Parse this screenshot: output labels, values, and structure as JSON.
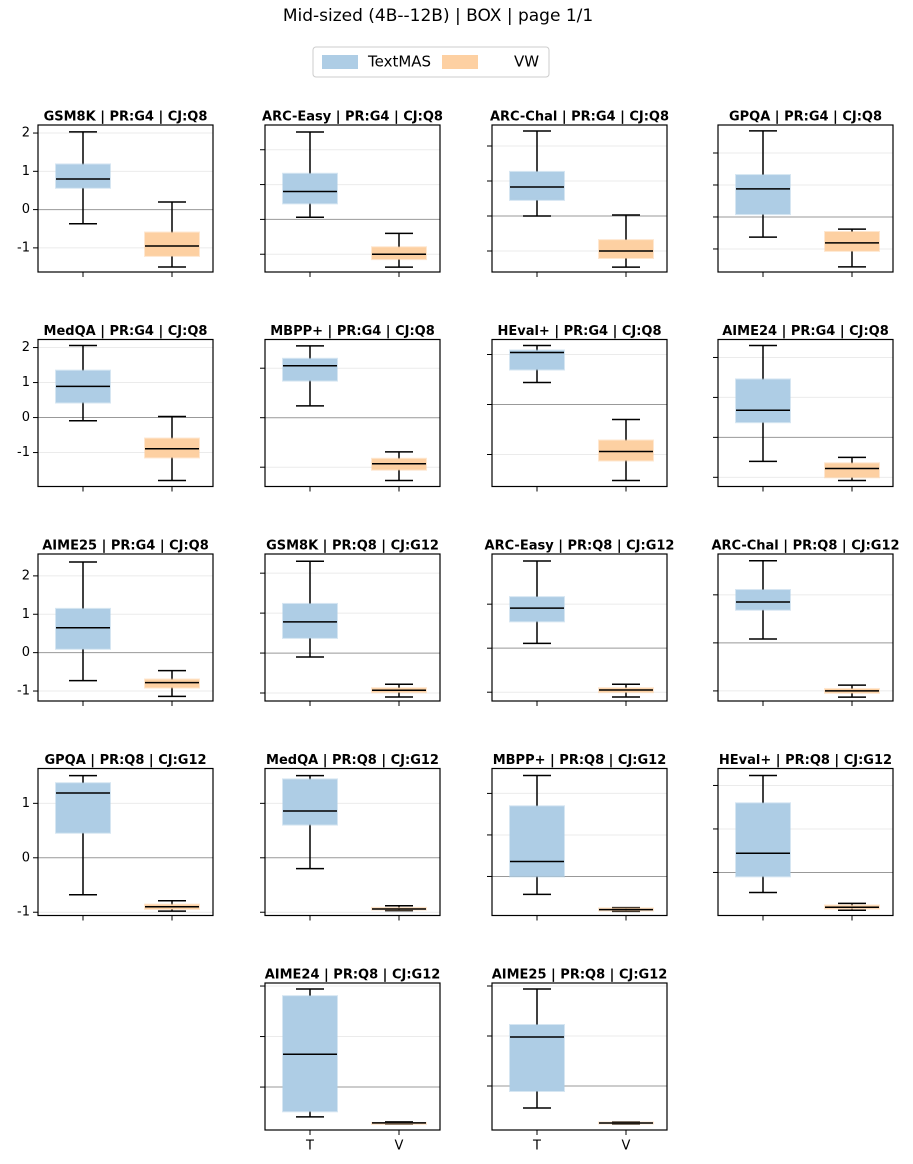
{
  "title": "Mid-sized (4B--12B) | BOX | page 1/1",
  "legend": [
    {
      "name": "TextMAS",
      "color": "#aecde5"
    },
    {
      "name": "VW",
      "color": "#fdd0a2"
    }
  ],
  "chart_data": [
    {
      "type": "box",
      "title": "GSM8K | PR:G4 | CJ:Q8",
      "categories": [
        "T",
        "V"
      ],
      "ylim": [
        -1.63,
        2.21
      ],
      "yticks": [
        -1,
        0,
        1,
        2
      ],
      "ytick_labels": true,
      "xtick_labels": false,
      "boxes": [
        {
          "whislo": -0.37,
          "q1": 0.57,
          "med": 0.8,
          "q3": 1.18,
          "whishi": 2.03
        },
        {
          "whislo": -1.5,
          "q1": -1.21,
          "med": -0.95,
          "q3": -0.6,
          "whishi": 0.2
        }
      ]
    },
    {
      "type": "box",
      "title": "ARC-Easy | PR:G4 | CJ:Q8",
      "categories": [
        "T",
        "V"
      ],
      "ylim": [
        -1.51,
        2.71
      ],
      "yticks": [
        -1,
        0,
        1,
        2
      ],
      "ytick_labels": false,
      "xtick_labels": false,
      "boxes": [
        {
          "whislo": 0.06,
          "q1": 0.46,
          "med": 0.8,
          "q3": 1.31,
          "whishi": 2.51
        },
        {
          "whislo": -1.37,
          "q1": -1.14,
          "med": -1.0,
          "q3": -0.8,
          "whishi": -0.4
        }
      ]
    },
    {
      "type": "box",
      "title": "ARC-Chal | PR:G4 | CJ:Q8",
      "categories": [
        "T",
        "V"
      ],
      "ylim": [
        -1.6,
        2.6
      ],
      "yticks": [
        -1,
        0,
        1,
        2
      ],
      "ytick_labels": false,
      "xtick_labels": false,
      "boxes": [
        {
          "whislo": 0,
          "q1": 0.46,
          "med": 0.83,
          "q3": 1.26,
          "whishi": 2.43
        },
        {
          "whislo": -1.46,
          "q1": -1.2,
          "med": -1.0,
          "q3": -0.69,
          "whishi": 0.03
        }
      ]
    },
    {
      "type": "box",
      "title": "GPQA | PR:G4 | CJ:Q8",
      "categories": [
        "T",
        "V"
      ],
      "ylim": [
        -1.72,
        2.875
      ],
      "yticks": [
        -1,
        0,
        1,
        2
      ],
      "ytick_labels": false,
      "xtick_labels": false,
      "boxes": [
        {
          "whislo": -0.63,
          "q1": 0.09,
          "med": 0.88,
          "q3": 1.31,
          "whishi": 2.69
        },
        {
          "whislo": -1.56,
          "q1": -1.06,
          "med": -0.81,
          "q3": -0.47,
          "whishi": -0.38
        }
      ]
    },
    {
      "type": "box",
      "title": "MedQA | PR:G4 | CJ:Q8",
      "categories": [
        "T",
        "V"
      ],
      "ylim": [
        -1.97,
        2.23
      ],
      "yticks": [
        -1,
        0,
        1,
        2
      ],
      "ytick_labels": true,
      "xtick_labels": false,
      "boxes": [
        {
          "whislo": -0.09,
          "q1": 0.43,
          "med": 0.89,
          "q3": 1.34,
          "whishi": 2.06
        },
        {
          "whislo": -1.8,
          "q1": -1.14,
          "med": -0.89,
          "q3": -0.6,
          "whishi": 0.03
        }
      ]
    },
    {
      "type": "box",
      "title": "MBPP+ | PR:G4 | CJ:Q8",
      "categories": [
        "T",
        "V"
      ],
      "ylim": [
        -1.39,
        1.58
      ],
      "yticks": [
        -1,
        0,
        1
      ],
      "ytick_labels": false,
      "xtick_labels": false,
      "boxes": [
        {
          "whislo": 0.24,
          "q1": 0.75,
          "med": 1.05,
          "q3": 1.19,
          "whishi": 1.45
        },
        {
          "whislo": -1.27,
          "q1": -1.05,
          "med": -0.93,
          "q3": -0.83,
          "whishi": -0.69
        }
      ]
    },
    {
      "type": "box",
      "title": "HEval+ | PR:G4 | CJ:Q8",
      "categories": [
        "T",
        "V"
      ],
      "ylim": [
        -1.64,
        1.3
      ],
      "yticks": [
        -1,
        0,
        1
      ],
      "ytick_labels": false,
      "xtick_labels": false,
      "boxes": [
        {
          "whislo": 0.44,
          "q1": 0.7,
          "med": 1.04,
          "q3": 1.08,
          "whishi": 1.18
        },
        {
          "whislo": -1.52,
          "q1": -1.12,
          "med": -0.94,
          "q3": -0.72,
          "whishi": -0.3
        }
      ]
    },
    {
      "type": "box",
      "title": "AIME24 | PR:G4 | CJ:Q8",
      "categories": [
        "T",
        "V"
      ],
      "ylim": [
        -1.23,
        2.45
      ],
      "yticks": [
        -1,
        0,
        1,
        2
      ],
      "ytick_labels": false,
      "xtick_labels": false,
      "boxes": [
        {
          "whislo": -0.6,
          "q1": 0.38,
          "med": 0.68,
          "q3": 1.45,
          "whishi": 2.3
        },
        {
          "whislo": -1.08,
          "q1": -1.0,
          "med": -0.78,
          "q3": -0.65,
          "whishi": -0.5
        }
      ]
    },
    {
      "type": "box",
      "title": "AIME25 | PR:G4 | CJ:Q8",
      "categories": [
        "T",
        "V"
      ],
      "ylim": [
        -1.26,
        2.57
      ],
      "yticks": [
        -1,
        0,
        1,
        2
      ],
      "ytick_labels": true,
      "xtick_labels": false,
      "boxes": [
        {
          "whislo": -0.73,
          "q1": 0.1,
          "med": 0.65,
          "q3": 1.14,
          "whishi": 2.36
        },
        {
          "whislo": -1.14,
          "q1": -0.91,
          "med": -0.78,
          "q3": -0.7,
          "whishi": -0.47
        }
      ]
    },
    {
      "type": "box",
      "title": "GSM8K | PR:Q8 | CJ:G12",
      "categories": [
        "T",
        "V"
      ],
      "ylim": [
        -1.2,
        2.48
      ],
      "yticks": [
        -1,
        0,
        1,
        2
      ],
      "ytick_labels": false,
      "xtick_labels": false,
      "boxes": [
        {
          "whislo": -0.1,
          "q1": 0.38,
          "med": 0.78,
          "q3": 1.23,
          "whishi": 2.3
        },
        {
          "whislo": -1.1,
          "q1": -0.98,
          "med": -0.93,
          "q3": -0.88,
          "whishi": -0.78
        }
      ]
    },
    {
      "type": "box",
      "title": "ARC-Easy | PR:Q8 | CJ:G12",
      "categories": [
        "T",
        "V"
      ],
      "ylim": [
        -1.2,
        2.14
      ],
      "yticks": [
        -1,
        0,
        1
      ],
      "ytick_labels": false,
      "xtick_labels": false,
      "boxes": [
        {
          "whislo": 0.11,
          "q1": 0.61,
          "med": 0.91,
          "q3": 1.16,
          "whishi": 1.98
        },
        {
          "whislo": -1.11,
          "q1": -1.0,
          "med": -0.95,
          "q3": -0.91,
          "whishi": -0.82
        }
      ]
    },
    {
      "type": "box",
      "title": "ARC-Chal | PR:Q8 | CJ:G12",
      "categories": [
        "T",
        "V"
      ],
      "ylim": [
        -1.21,
        1.85
      ],
      "yticks": [
        -1,
        0,
        1
      ],
      "ytick_labels": false,
      "xtick_labels": false,
      "boxes": [
        {
          "whislo": 0.08,
          "q1": 0.69,
          "med": 0.85,
          "q3": 1.1,
          "whishi": 1.71
        },
        {
          "whislo": -1.13,
          "q1": -1.04,
          "med": -1.0,
          "q3": -0.96,
          "whishi": -0.88
        }
      ]
    },
    {
      "type": "box",
      "title": "GPQA | PR:Q8 | CJ:G12",
      "categories": [
        "T",
        "V"
      ],
      "ylim": [
        -1.06,
        1.64
      ],
      "yticks": [
        -1,
        0,
        1
      ],
      "ytick_labels": true,
      "xtick_labels": false,
      "boxes": [
        {
          "whislo": -0.68,
          "q1": 0.46,
          "med": 1.19,
          "q3": 1.37,
          "whishi": 1.51
        },
        {
          "whislo": -0.98,
          "q1": -0.94,
          "med": -0.9,
          "q3": -0.86,
          "whishi": -0.79
        }
      ]
    },
    {
      "type": "box",
      "title": "MedQA | PR:Q8 | CJ:G12",
      "categories": [
        "T",
        "V"
      ],
      "ylim": [
        -1.06,
        1.64
      ],
      "yticks": [
        -1,
        0,
        1
      ],
      "ytick_labels": false,
      "xtick_labels": false,
      "boxes": [
        {
          "whislo": -0.2,
          "q1": 0.61,
          "med": 0.86,
          "q3": 1.44,
          "whishi": 1.51
        },
        {
          "whislo": -0.97,
          "q1": -0.95,
          "med": -0.94,
          "q3": -0.92,
          "whishi": -0.88
        }
      ]
    },
    {
      "type": "box",
      "title": "MBPP+ | PR:Q8 | CJ:G12",
      "categories": [
        "T",
        "V"
      ],
      "ylim": [
        -0.94,
        2.6
      ],
      "yticks": [
        0,
        1,
        2
      ],
      "ytick_labels": false,
      "xtick_labels": false,
      "boxes": [
        {
          "whislo": -0.43,
          "q1": 0,
          "med": 0.36,
          "q3": 1.69,
          "whishi": 2.43
        },
        {
          "whislo": -0.84,
          "q1": -0.82,
          "med": -0.8,
          "q3": -0.77,
          "whishi": -0.75
        }
      ]
    },
    {
      "type": "box",
      "title": "HEval+ | PR:Q8 | CJ:G12",
      "categories": [
        "T",
        "V"
      ],
      "ylim": [
        -0.99,
        2.39
      ],
      "yticks": [
        0,
        1,
        2
      ],
      "ytick_labels": false,
      "xtick_labels": false,
      "boxes": [
        {
          "whislo": -0.46,
          "q1": -0.09,
          "med": 0.44,
          "q3": 1.59,
          "whishi": 2.23
        },
        {
          "whislo": -0.87,
          "q1": -0.83,
          "med": -0.8,
          "q3": -0.76,
          "whishi": -0.71
        }
      ]
    },
    {
      "type": "box",
      "title": "AIME24 | PR:Q8 | CJ:G12",
      "categories": [
        "T",
        "V"
      ],
      "ylim": [
        -0.85,
        2.06
      ],
      "yticks": [
        0,
        1,
        2
      ],
      "ytick_labels": false,
      "xtick_labels": true,
      "boxes": [
        {
          "whislo": -0.59,
          "q1": -0.48,
          "med": 0.65,
          "q3": 1.8,
          "whishi": 1.94
        },
        {
          "whislo": -0.73,
          "q1": -0.73,
          "med": -0.71,
          "q3": -0.71,
          "whishi": -0.69
        }
      ]
    },
    {
      "type": "box",
      "title": "AIME25 | PR:Q8 | CJ:G12",
      "categories": [
        "T",
        "V"
      ],
      "ylim": [
        -0.88,
        2.06
      ],
      "yticks": [
        0,
        1,
        2
      ],
      "ytick_labels": false,
      "xtick_labels": true,
      "boxes": [
        {
          "whislo": -0.44,
          "q1": -0.1,
          "med": 0.98,
          "q3": 1.22,
          "whishi": 1.94
        },
        {
          "whislo": -0.76,
          "q1": -0.75,
          "med": -0.74,
          "q3": -0.73,
          "whishi": -0.72
        }
      ]
    }
  ]
}
